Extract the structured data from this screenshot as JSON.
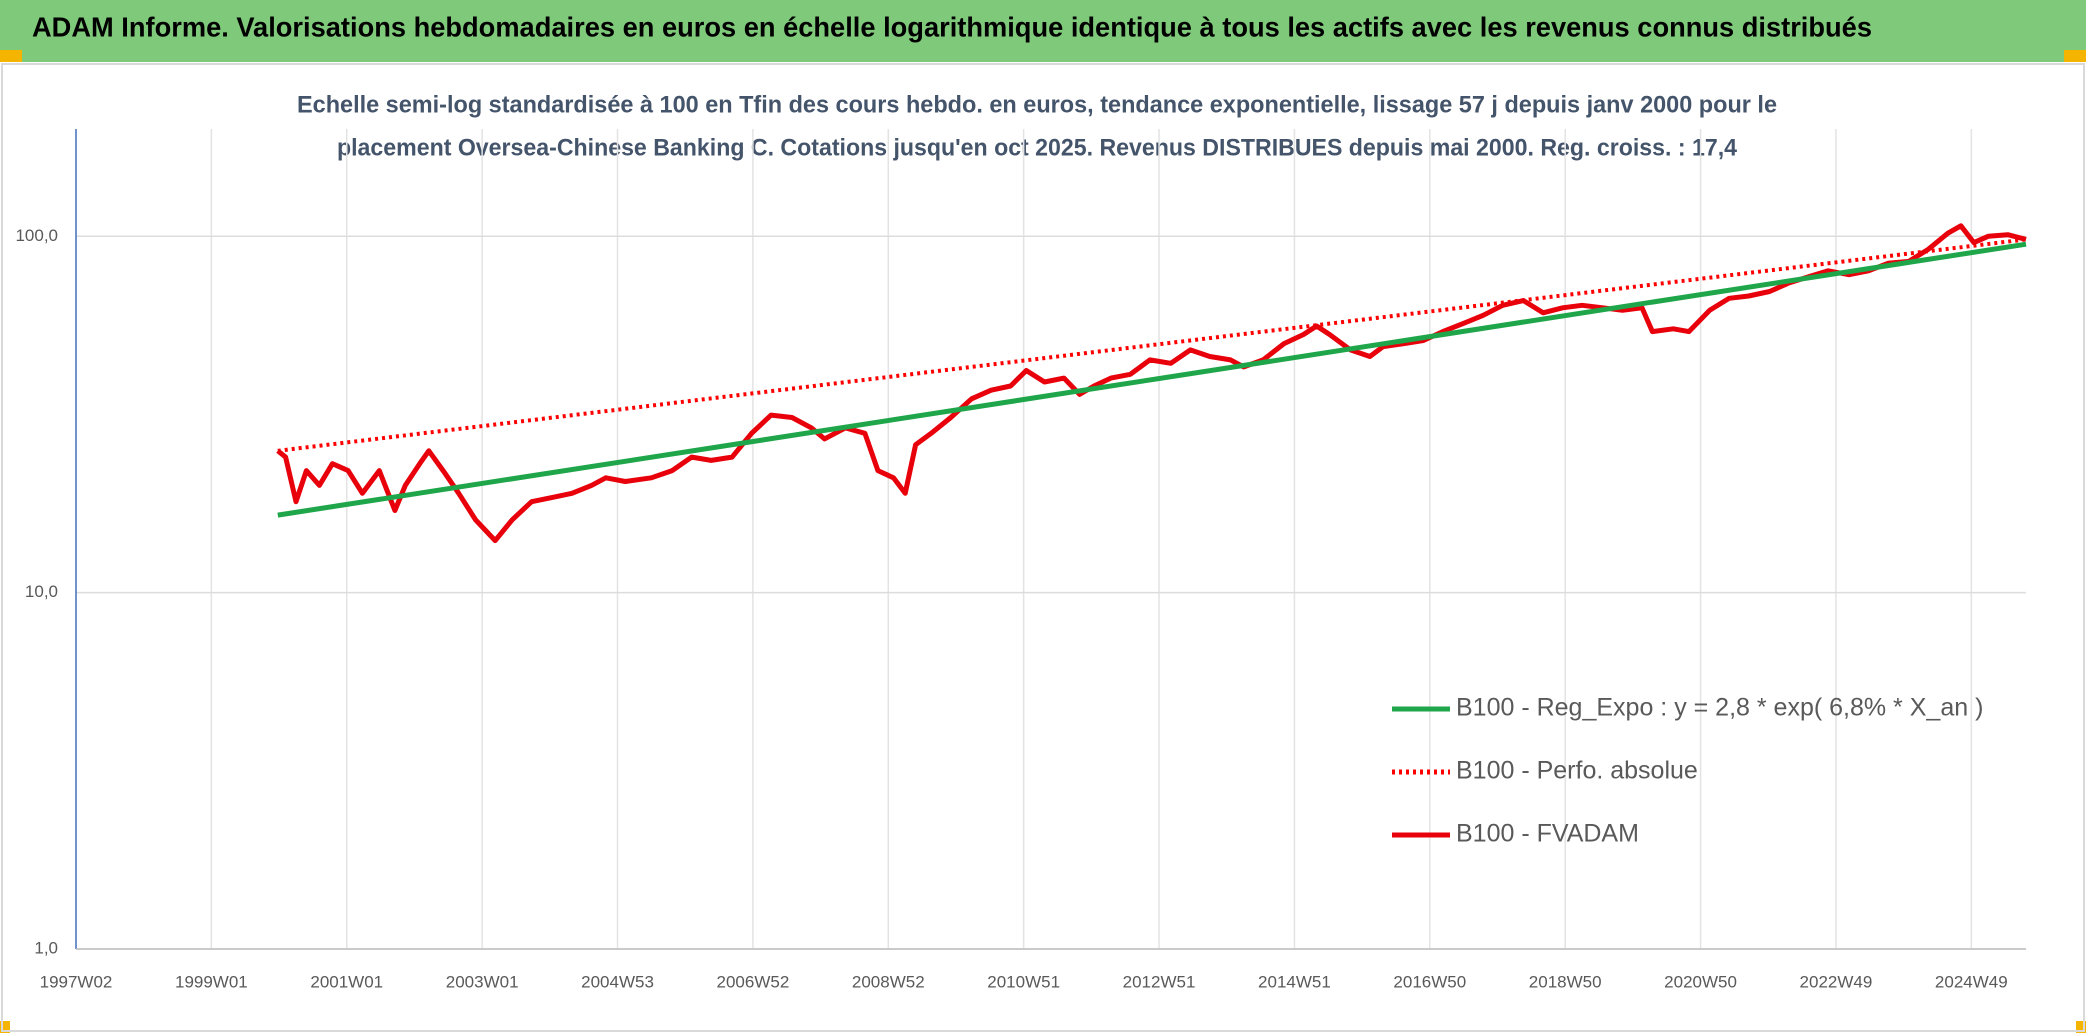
{
  "chart_data": {
    "type": "line",
    "title": "ADAM Informe. Valorisations hebdomadaires en euros en échelle logarithmique identique à tous les actifs avec les revenus connus distribués",
    "subtitle": [
      "Echelle semi-log standardisée à 100 en Tfin des cours hebdo. en euros, tendance exponentielle, lissage 57 j depuis janv 2000 pour le",
      "placement Oversea-Chinese Banking C. Cotations jusqu'en oct 2025. Revenus DISTRIBUES depuis mai 2000. Reg. croiss. : 17,4"
    ],
    "log_y": true,
    "grid": true,
    "legend": "lower right",
    "xlim": [
      0,
      1498
    ],
    "xticks": [
      {
        "value": 0,
        "label": "1997W02"
      },
      {
        "value": 104,
        "label": "1999W01"
      },
      {
        "value": 208,
        "label": "2001W01"
      },
      {
        "value": 312,
        "label": "2003W01"
      },
      {
        "value": 416,
        "label": "2004W53"
      },
      {
        "value": 520,
        "label": "2006W52"
      },
      {
        "value": 624,
        "label": "2008W52"
      },
      {
        "value": 728,
        "label": "2010W51"
      },
      {
        "value": 832,
        "label": "2012W51"
      },
      {
        "value": 936,
        "label": "2014W51"
      },
      {
        "value": 1040,
        "label": "2016W50"
      },
      {
        "value": 1144,
        "label": "2018W50"
      },
      {
        "value": 1248,
        "label": "2020W50"
      },
      {
        "value": 1352,
        "label": "2022W49"
      },
      {
        "value": 1456,
        "label": "2024W49"
      }
    ],
    "ylim": [
      1,
      200
    ],
    "yticks": [
      {
        "value": 1,
        "label": "1,0"
      },
      {
        "value": 10,
        "label": "10,0"
      },
      {
        "value": 100,
        "label": "100,0"
      }
    ],
    "series": [
      {
        "name": "B100 - Reg_Expo : y = 2,8 * exp( 6,8% *  X_an )",
        "color": "#1fa64a",
        "style": "solid",
        "x": [
          155,
          1498
        ],
        "values": [
          16.5,
          95
        ]
      },
      {
        "name": "B100 - Perfo. absolue",
        "color": "#ff0000",
        "style": "dotted",
        "x": [
          155,
          1498
        ],
        "values": [
          25,
          98
        ]
      },
      {
        "name": "B100 - FVADAM",
        "color": "#e8000b",
        "style": "solid",
        "x": [
          155,
          161,
          169,
          177,
          187,
          197,
          209,
          220,
          233,
          245,
          253,
          264,
          271,
          282,
          294,
          307,
          322,
          335,
          350,
          366,
          381,
          396,
          407,
          422,
          442,
          458,
          473,
          488,
          504,
          519,
          534,
          550,
          565,
          575,
          591,
          606,
          616,
          628,
          637,
          645,
          657,
          672,
          688,
          703,
          718,
          730,
          744,
          759,
          771,
          782,
          795,
          810,
          825,
          841,
          856,
          871,
          887,
          897,
          912,
          928,
          943,
          953,
          963,
          979,
          994,
          1004,
          1020,
          1035,
          1050,
          1066,
          1081,
          1096,
          1112,
          1127,
          1142,
          1157,
          1173,
          1188,
          1203,
          1211,
          1227,
          1239,
          1255,
          1270,
          1285,
          1301,
          1316,
          1331,
          1346,
          1362,
          1377,
          1392,
          1408,
          1423,
          1438,
          1448,
          1458,
          1469,
          1484,
          1498
        ],
        "values": [
          25,
          24,
          18,
          22,
          20,
          23,
          22,
          19,
          22,
          17,
          20,
          23,
          25,
          22,
          19,
          16,
          14,
          16,
          18,
          18.5,
          19,
          20,
          21,
          20.5,
          21,
          22,
          24,
          23.5,
          24,
          28,
          31.5,
          31,
          29,
          27,
          29,
          28,
          22,
          21,
          19,
          26,
          28,
          31,
          35,
          37,
          38,
          42,
          39,
          40,
          36,
          38,
          40,
          41,
          45,
          44,
          48,
          46,
          45,
          43,
          45,
          50,
          53,
          56,
          53,
          48,
          46,
          49,
          50,
          51,
          54,
          57,
          60,
          64,
          66,
          61,
          63,
          64,
          63,
          62,
          63,
          54,
          55,
          54,
          62,
          67,
          68,
          70,
          74,
          77,
          80,
          78,
          80,
          84,
          85,
          92,
          102,
          107,
          96,
          100,
          101,
          98
        ]
      }
    ]
  }
}
